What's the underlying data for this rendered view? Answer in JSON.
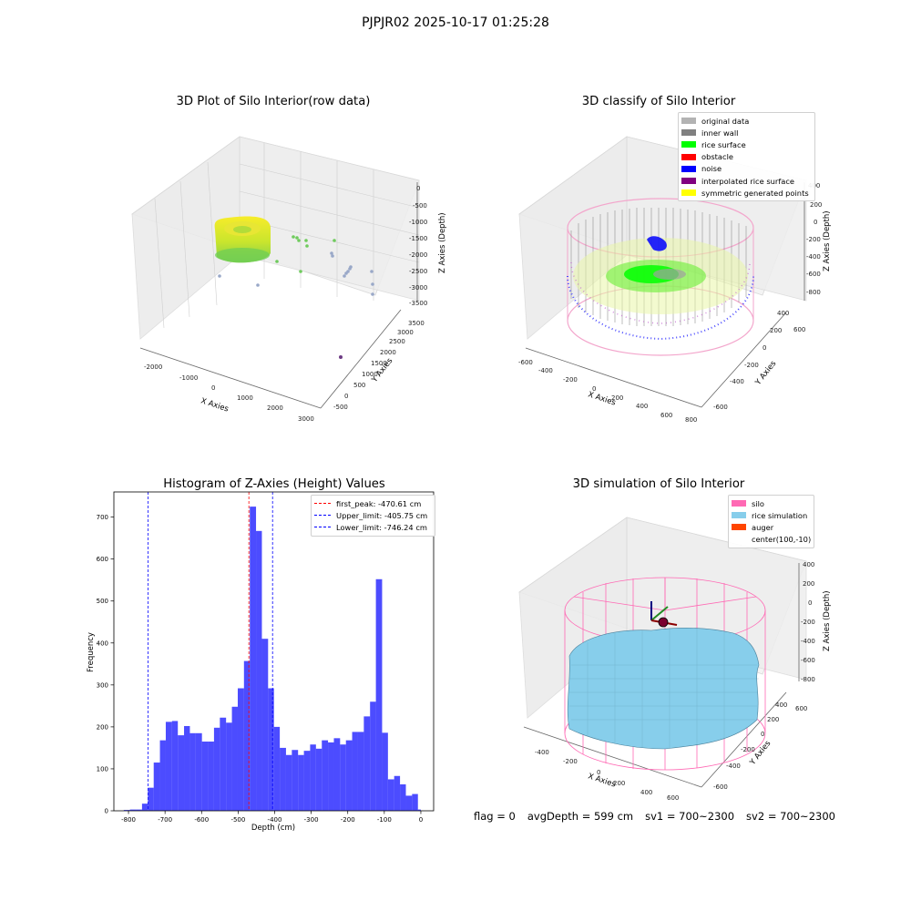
{
  "suptitle": "PJPJR02 2025-10-17 01:25:28",
  "status": {
    "flag": "flag = 0",
    "avg_depth": "avgDepth = 599 cm",
    "sv1": "sv1 = 700~2300",
    "sv2": "sv2 = 700~2300"
  },
  "chart_data": [
    {
      "type": "scatter",
      "projection": "3d",
      "title": "3D Plot of Silo Interior(row data)",
      "xlabel": "X Axies",
      "ylabel": "Y Axies",
      "zlabel": "Z Axies (Depth)",
      "x_ticks": [
        "-2000",
        "-1000",
        "0",
        "1000",
        "2000",
        "3000"
      ],
      "y_ticks": [
        "-500",
        "0",
        "500",
        "1000",
        "1500",
        "2000",
        "2500",
        "3000",
        "3500"
      ],
      "z_ticks": [
        "0",
        "-500",
        "-1000",
        "-1500",
        "-2000",
        "-2500",
        "-3000",
        "-3500"
      ],
      "xlim": [
        -2200,
        3000
      ],
      "ylim": [
        -500,
        3600
      ],
      "zlim": [
        -3700,
        0
      ],
      "colormap": "viridis",
      "grid": true,
      "series": [
        {
          "values": "dense ring of points (rice surface and wall) near x≈-1500..-500, depth ≈ -1500..-2000"
        },
        {
          "values": "scattered outlier points extending toward x≈2500, y≈0, depth ≈ -3500"
        }
      ]
    },
    {
      "type": "scatter",
      "projection": "3d",
      "title": "3D classify of Silo Interior",
      "xlabel": "X Axies",
      "ylabel": "Y Axies",
      "zlabel": "Z Axies (Depth)",
      "x_ticks": [
        "-600",
        "-400",
        "-200",
        "0",
        "200",
        "400",
        "600",
        "800"
      ],
      "y_ticks": [
        "-600",
        "-400",
        "-200",
        "0",
        "200",
        "400",
        "600"
      ],
      "z_ticks": [
        "200",
        "0",
        "-200",
        "-400",
        "-600",
        "-800"
      ],
      "z_extra_tick": "400",
      "legend_position": "upper-right",
      "grid": true,
      "legend": [
        {
          "label": "original data",
          "color": "#b3b3b3"
        },
        {
          "label": "inner wall",
          "color": "#808080"
        },
        {
          "label": "rice surface",
          "color": "#00ff00"
        },
        {
          "label": "obstacle",
          "color": "#ff0000"
        },
        {
          "label": "noise",
          "color": "#0000ff"
        },
        {
          "label": "interpolated rice surface",
          "color": "#800080"
        },
        {
          "label": "symmetric generated points",
          "color": "#ffff00"
        }
      ]
    },
    {
      "type": "bar",
      "title": "Histogram of Z-Axies (Height) Values",
      "xlabel": "Depth (cm)",
      "ylabel": "Frequency",
      "xlim": [
        -840,
        35
      ],
      "ylim": [
        0,
        760
      ],
      "x_ticks": [
        -800,
        -700,
        -600,
        -500,
        -400,
        -300,
        -200,
        -100,
        0
      ],
      "y_ticks": [
        0,
        100,
        200,
        300,
        400,
        500,
        600,
        700
      ],
      "bar_color": "#0000ff",
      "bar_alpha": 0.7,
      "bin_edges": [
        -813,
        -796,
        -780,
        -763,
        -747,
        -731,
        -714,
        -698,
        -681,
        -665,
        -648,
        -632,
        -616,
        -599,
        -583,
        -566,
        -550,
        -533,
        -517,
        -501,
        -484,
        -468,
        -451,
        -435,
        -418,
        -402,
        -386,
        -369,
        -353,
        -336,
        -320,
        -303,
        -287,
        -271,
        -254,
        -238,
        -221,
        -205,
        -188,
        -172,
        -156,
        -139,
        -123,
        -106,
        -90,
        -73,
        -57,
        -41,
        -24,
        -8,
        0
      ],
      "values": [
        2,
        3,
        3,
        17,
        55,
        115,
        168,
        212,
        214,
        180,
        202,
        185,
        185,
        165,
        165,
        198,
        222,
        210,
        248,
        292,
        357,
        725,
        667,
        410,
        292,
        200,
        150,
        133,
        145,
        133,
        143,
        158,
        148,
        168,
        163,
        173,
        158,
        168,
        188,
        188,
        225,
        260,
        552,
        186,
        75,
        83,
        63,
        36,
        40,
        3
      ],
      "grid": false,
      "legend_position": "upper-right",
      "legend": [
        {
          "label": "first_peak: -470.61 cm",
          "value": -470.61,
          "color": "#ff0000"
        },
        {
          "label": "Upper_limit: -405.75 cm",
          "value": -405.75,
          "color": "#0000ff"
        },
        {
          "label": "Lower_limit: -746.24 cm",
          "value": -746.24,
          "color": "#0000ff"
        }
      ]
    },
    {
      "type": "area",
      "projection": "3d",
      "title": "3D simulation of Silo Interior",
      "xlabel": "X Axies",
      "ylabel": "Y Axies",
      "zlabel": "Z Axies (Depth)",
      "x_ticks": [
        "-400",
        "-200",
        "0",
        "200",
        "400",
        "600"
      ],
      "y_ticks": [
        "-600",
        "-400",
        "-200",
        "0",
        "200",
        "400",
        "600"
      ],
      "z_ticks": [
        "400",
        "200",
        "0",
        "-200",
        "-400",
        "-600",
        "-800"
      ],
      "legend_position": "upper-right",
      "grid": true,
      "legend": [
        {
          "label": "silo",
          "color": "#ff69b4"
        },
        {
          "label": "rice simulation",
          "color": "#87ceeb"
        },
        {
          "label": "auger",
          "color": "#ff4500"
        },
        {
          "label": "center(100,-10)",
          "color": ""
        }
      ]
    }
  ]
}
